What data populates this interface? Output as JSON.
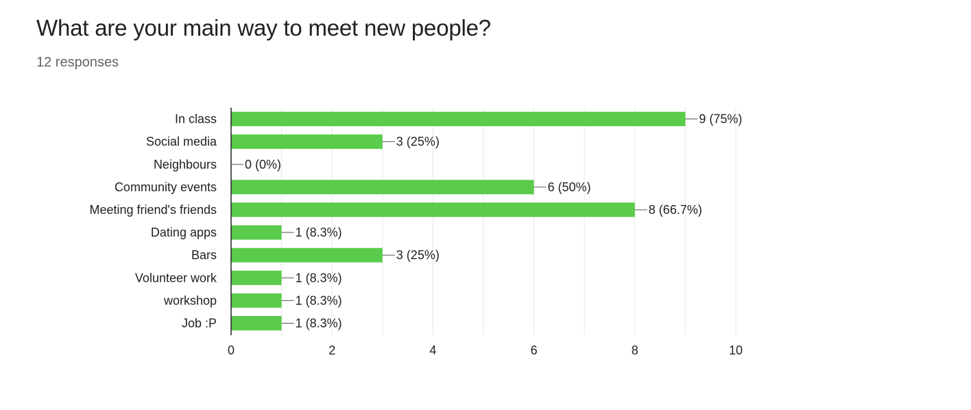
{
  "question": {
    "title": "What are your main way to meet new people?",
    "responses": "12 responses"
  },
  "colors": {
    "bar": "#5acb4b",
    "grid": "#e6e6e6",
    "axis": "#202124",
    "text": "#202124"
  },
  "chart_data": {
    "type": "bar",
    "orientation": "horizontal",
    "categories": [
      "In class",
      "Social media",
      "Neighbours",
      "Community events",
      "Meeting friend's friends",
      "Dating apps",
      "Bars",
      "Volunteer work",
      "workshop",
      "Job :P"
    ],
    "values": [
      9,
      3,
      0,
      6,
      8,
      1,
      3,
      1,
      1,
      1
    ],
    "data_labels": [
      "9 (75%)",
      "3 (25%)",
      "0 (0%)",
      "6 (50%)",
      "8 (66.7%)",
      "1 (8.3%)",
      "3 (25%)",
      "1 (8.3%)",
      "1 (8.3%)",
      "1 (8.3%)"
    ],
    "xlim": [
      0,
      10
    ],
    "xticks": [
      "0",
      "2",
      "4",
      "6",
      "8",
      "10"
    ],
    "grid": true
  }
}
